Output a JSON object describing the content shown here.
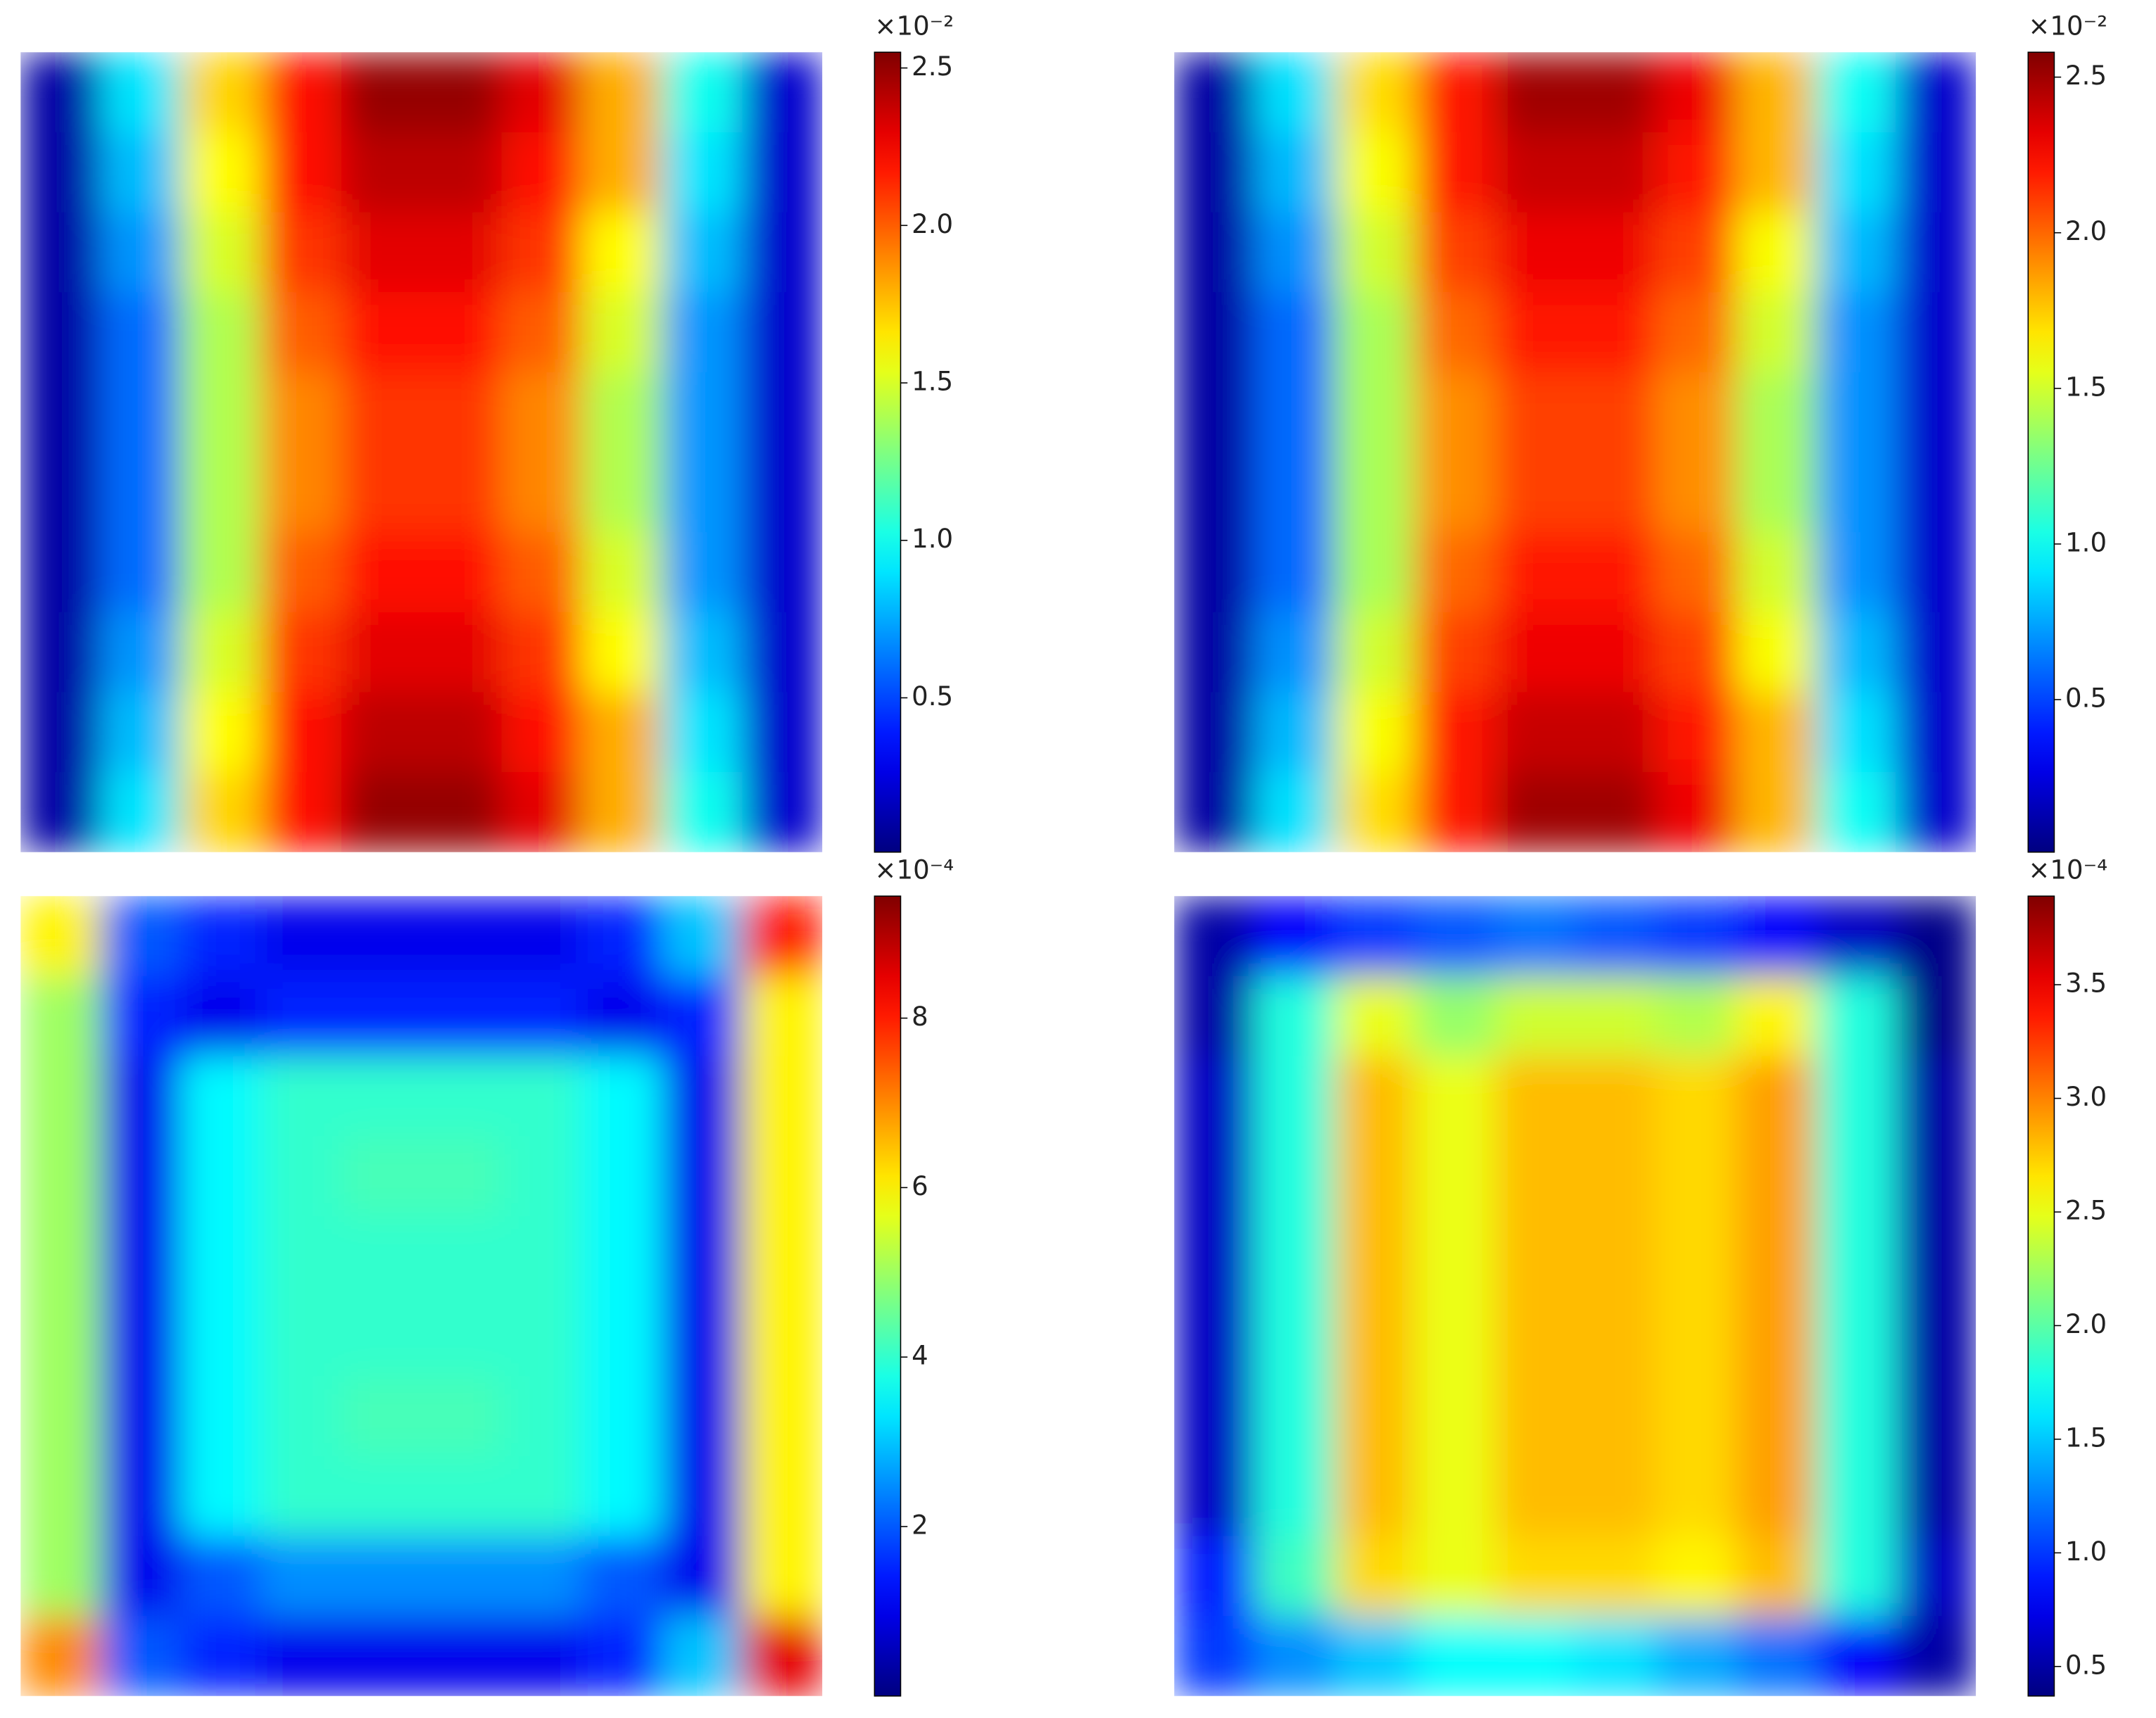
{
  "chart_data": [
    {
      "type": "heatmap",
      "colormap": "jet",
      "offset_label": "×10⁻²",
      "zlim": [
        0.01,
        2.55
      ],
      "cticks": [
        0.5,
        {
          "value": 1,
          "label": "1.0"
        },
        1.5,
        {
          "value": 2,
          "label": "2.0"
        },
        2.5
      ],
      "z": [
        [
          0.1,
          0.9,
          1.7,
          2.2,
          2.5,
          2.5,
          2.3,
          1.8,
          1.0,
          0.2
        ],
        [
          0.1,
          0.8,
          1.6,
          2.2,
          2.4,
          2.4,
          2.2,
          1.8,
          0.9,
          0.2
        ],
        [
          0.1,
          0.7,
          1.5,
          2.1,
          2.3,
          2.3,
          2.1,
          1.6,
          0.8,
          0.2
        ],
        [
          0.1,
          0.6,
          1.4,
          2.0,
          2.2,
          2.2,
          2.0,
          1.5,
          0.7,
          0.2
        ],
        [
          0.1,
          0.6,
          1.4,
          1.9,
          2.1,
          2.1,
          1.9,
          1.4,
          0.7,
          0.2
        ],
        [
          0.1,
          0.6,
          1.4,
          1.9,
          2.1,
          2.1,
          1.9,
          1.4,
          0.7,
          0.2
        ],
        [
          0.1,
          0.6,
          1.4,
          2.0,
          2.2,
          2.2,
          2.0,
          1.5,
          0.7,
          0.2
        ],
        [
          0.1,
          0.7,
          1.5,
          2.1,
          2.3,
          2.3,
          2.1,
          1.6,
          0.8,
          0.2
        ],
        [
          0.1,
          0.8,
          1.6,
          2.2,
          2.4,
          2.4,
          2.2,
          1.8,
          0.9,
          0.2
        ],
        [
          0.1,
          0.9,
          1.7,
          2.2,
          2.5,
          2.5,
          2.3,
          1.8,
          1.0,
          0.2
        ]
      ]
    },
    {
      "type": "heatmap",
      "colormap": "jet",
      "offset_label": "×10⁻²",
      "zlim": [
        0.01,
        2.58
      ],
      "cticks": [
        0.5,
        {
          "value": 1,
          "label": "1.0"
        },
        1.5,
        {
          "value": 2,
          "label": "2.0"
        },
        2.5
      ],
      "z": [
        [
          0.1,
          0.9,
          1.7,
          2.2,
          2.5,
          2.5,
          2.3,
          1.8,
          1.0,
          0.2
        ],
        [
          0.1,
          0.8,
          1.6,
          2.2,
          2.4,
          2.4,
          2.2,
          1.8,
          0.9,
          0.2
        ],
        [
          0.1,
          0.7,
          1.5,
          2.1,
          2.3,
          2.3,
          2.1,
          1.6,
          0.8,
          0.2
        ],
        [
          0.1,
          0.6,
          1.4,
          2.0,
          2.2,
          2.2,
          2.0,
          1.5,
          0.7,
          0.2
        ],
        [
          0.1,
          0.6,
          1.4,
          1.9,
          2.1,
          2.1,
          1.9,
          1.4,
          0.7,
          0.2
        ],
        [
          0.1,
          0.6,
          1.4,
          1.9,
          2.1,
          2.1,
          1.9,
          1.4,
          0.7,
          0.2
        ],
        [
          0.1,
          0.6,
          1.4,
          2.0,
          2.2,
          2.2,
          2.0,
          1.5,
          0.7,
          0.2
        ],
        [
          0.1,
          0.7,
          1.5,
          2.1,
          2.3,
          2.3,
          2.1,
          1.6,
          0.8,
          0.2
        ],
        [
          0.1,
          0.8,
          1.6,
          2.2,
          2.4,
          2.4,
          2.2,
          1.8,
          0.9,
          0.2
        ],
        [
          0.1,
          0.9,
          1.7,
          2.2,
          2.5,
          2.5,
          2.3,
          1.8,
          1.0,
          0.2
        ]
      ]
    },
    {
      "type": "heatmap",
      "colormap": "jet",
      "offset_label": "×10⁻⁴",
      "zlim": [
        0,
        9.44
      ],
      "cticks": [
        2,
        4,
        6,
        8
      ],
      "z": [
        [
          6,
          2,
          1.5,
          1,
          1,
          1,
          1,
          1.5,
          3,
          8
        ],
        [
          5,
          1.5,
          1,
          1.5,
          1.5,
          1.5,
          1.5,
          1,
          1.5,
          6
        ],
        [
          5,
          1,
          3.5,
          4,
          4,
          4,
          4,
          3.5,
          1,
          6
        ],
        [
          5,
          1,
          3.5,
          4,
          4.2,
          4.2,
          4,
          3.5,
          1,
          6
        ],
        [
          5,
          1,
          3.5,
          4,
          4,
          4,
          4,
          3.5,
          1,
          6
        ],
        [
          5,
          1,
          3.5,
          4,
          4,
          4,
          4,
          3.5,
          1,
          6
        ],
        [
          5,
          1,
          3.5,
          4,
          4.2,
          4.2,
          4,
          3.5,
          1,
          6
        ],
        [
          5,
          1,
          3.5,
          4,
          4,
          4,
          4,
          3.5,
          1,
          6
        ],
        [
          5,
          1,
          2,
          2.5,
          2.5,
          2.5,
          2.5,
          2,
          1,
          6
        ],
        [
          7,
          2,
          1.5,
          1,
          1,
          1,
          1,
          1.5,
          3,
          8.5
        ]
      ]
    },
    {
      "type": "heatmap",
      "colormap": "jet",
      "offset_label": "×10⁻⁴",
      "zlim": [
        0.37,
        3.89
      ],
      "cticks": [
        0.5,
        {
          "value": 1,
          "label": "1.0"
        },
        1.5,
        {
          "value": 2,
          "label": "2.0"
        },
        2.5,
        {
          "value": 3,
          "label": "3.0"
        },
        3.5
      ],
      "z": [
        [
          0.5,
          0.8,
          1.0,
          1.1,
          1.2,
          1.1,
          1.0,
          0.8,
          0.6,
          0.4
        ],
        [
          0.5,
          1.8,
          2.5,
          2.2,
          2.4,
          2.4,
          2.3,
          2.6,
          1.8,
          0.4
        ],
        [
          0.6,
          1.8,
          2.8,
          2.5,
          2.8,
          2.8,
          2.7,
          2.9,
          1.8,
          0.5
        ],
        [
          0.6,
          1.8,
          2.8,
          2.5,
          2.8,
          2.8,
          2.7,
          2.9,
          1.8,
          0.5
        ],
        [
          0.6,
          1.8,
          2.8,
          2.5,
          2.8,
          2.8,
          2.7,
          2.9,
          1.8,
          0.5
        ],
        [
          0.6,
          1.8,
          2.8,
          2.5,
          2.8,
          2.8,
          2.7,
          2.9,
          1.8,
          0.5
        ],
        [
          0.6,
          1.8,
          2.8,
          2.5,
          2.8,
          2.8,
          2.7,
          2.9,
          1.8,
          0.5
        ],
        [
          0.6,
          1.8,
          2.8,
          2.5,
          2.8,
          2.8,
          2.7,
          2.9,
          1.8,
          0.5
        ],
        [
          0.9,
          1.9,
          2.7,
          2.5,
          2.7,
          2.7,
          2.6,
          2.8,
          1.8,
          0.6
        ],
        [
          1.0,
          1.3,
          1.5,
          1.7,
          1.7,
          1.6,
          1.4,
          1.2,
          0.8,
          0.5
        ]
      ]
    }
  ]
}
